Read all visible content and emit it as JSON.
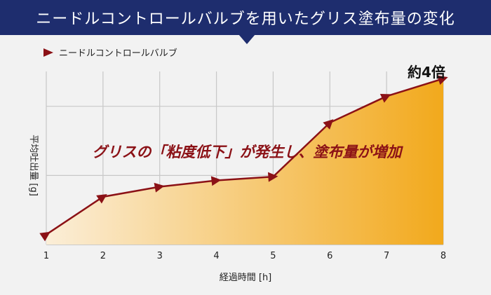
{
  "header": {
    "title": "ニードルコントロールバルブを用いたグリス塗布量の変化"
  },
  "chart_data": {
    "type": "area",
    "x": [
      1,
      2,
      3,
      4,
      5,
      6,
      7,
      8
    ],
    "series": [
      {
        "name": "ニードルコントロールバルブ",
        "values": [
          0.4,
          1.9,
          2.3,
          2.55,
          2.7,
          4.85,
          5.9,
          6.6
        ]
      }
    ],
    "xlabel": "経過時間 [h]",
    "ylabel": "平均吐出量 [g]",
    "xlim": [
      1,
      8
    ],
    "ylim": [
      0,
      8
    ],
    "grid": true,
    "legend": "top-left",
    "annotations": [
      {
        "text": "グリスの「粘度低下」が発生し、塗布量が増加"
      },
      {
        "text": "約4倍"
      }
    ],
    "colors": {
      "line": "#8b1116",
      "fill_start": "#fbeed8",
      "fill_end": "#f2a91c",
      "grid": "#c8c8c8"
    }
  }
}
